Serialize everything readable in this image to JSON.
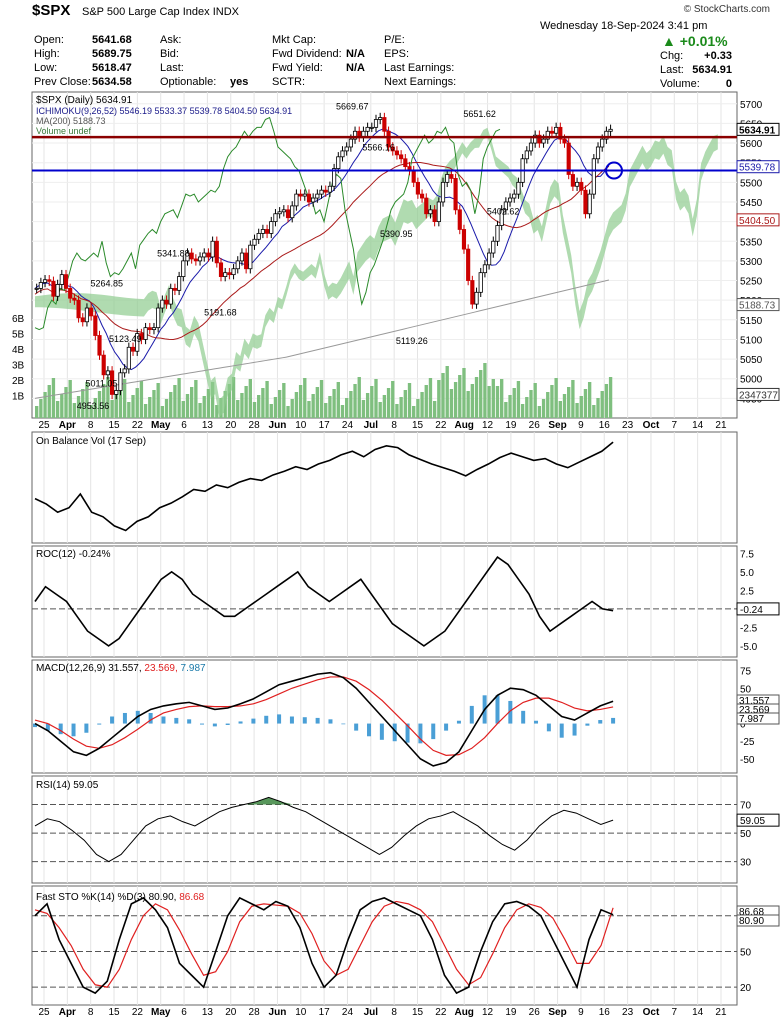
{
  "header": {
    "symbol": "$SPX",
    "name": "S&P 500 Large Cap Index",
    "exchange": "INDX",
    "brand": "© StockCharts.com",
    "datetime": "Wednesday   18-Sep-2024  3:41 pm",
    "change_pct": "+0.01%",
    "quote_rows": [
      [
        {
          "k": "Open:",
          "v": "5641.68"
        },
        {
          "k": "Ask:",
          "v": ""
        },
        {
          "k": "Mkt Cap:",
          "v": ""
        },
        {
          "k": "P/E:",
          "v": ""
        }
      ],
      [
        {
          "k": "High:",
          "v": "5689.75"
        },
        {
          "k": "Bid:",
          "v": ""
        },
        {
          "k": "Fwd Dividend:",
          "v": "N/A"
        },
        {
          "k": "EPS:",
          "v": ""
        }
      ],
      [
        {
          "k": "Low:",
          "v": "5618.47"
        },
        {
          "k": "Last:",
          "v": ""
        },
        {
          "k": "Fwd Yield:",
          "v": "N/A"
        },
        {
          "k": "Last Earnings:",
          "v": ""
        }
      ],
      [
        {
          "k": "Prev Close:",
          "v": "5634.58"
        },
        {
          "k": "Optionable:",
          "v": "yes"
        },
        {
          "k": "SCTR:",
          "v": ""
        },
        {
          "k": "Next Earnings:",
          "v": ""
        }
      ]
    ],
    "right_rows": [
      {
        "k": "Chg:",
        "v": "+0.33"
      },
      {
        "k": "Last:",
        "v": "5634.91"
      },
      {
        "k": "Volume:",
        "v": "0"
      }
    ]
  },
  "colors": {
    "up": "#ffffff",
    "down": "#cc0000",
    "cloud_up": "#8fcc8f",
    "cloud_down": "#f2b8b8",
    "res": "#8b0000",
    "sup": "#0000cc",
    "vol": "#7fbf7f",
    "obv": "#000000",
    "macd_hist": "#4a9fd6",
    "signal": "#e02020",
    "rsi_fill": "#2e7d32"
  },
  "chart_data": [
    {
      "type": "candlestick",
      "panel": "price",
      "legend": [
        "$SPX (Daily) 5634.91",
        "ICHIMOKU(9,26,52) 5546.19 5533.37 5539.78 5404.50 5634.91",
        "MA(200) 5188.73",
        "Volume undef"
      ],
      "ichimoku_values": [
        "5546.19",
        "5533.37",
        "5539.78",
        "5404.50",
        "5634.91"
      ],
      "x_ticks": [
        "25",
        "Apr",
        "8",
        "15",
        "22",
        "May",
        "6",
        "13",
        "20",
        "28",
        "Jun",
        "10",
        "17",
        "24",
        "Jul",
        "8",
        "15",
        "22",
        "Aug",
        "12",
        "19",
        "26",
        "Sep",
        "9",
        "16",
        "23",
        "Oct",
        "7",
        "14",
        "21"
      ],
      "y_ticks": [
        5700,
        5650,
        5600,
        5550,
        5500,
        5450,
        5400,
        5350,
        5300,
        5250,
        5200,
        5150,
        5100,
        5050,
        5000,
        4950
      ],
      "ylim": [
        4900,
        5730
      ],
      "volume_ticks": [
        "6B",
        "5B",
        "4B",
        "3B",
        "2B",
        "1B"
      ],
      "closes": [
        5230,
        5245,
        5252,
        5248,
        5210,
        5240,
        5265,
        5230,
        5205,
        5200,
        5155,
        5145,
        5180,
        5160,
        5110,
        5060,
        5010,
        5020,
        4960,
        4970,
        5015,
        5025,
        5080,
        5070,
        5115,
        5100,
        5130,
        5125,
        5130,
        5180,
        5200,
        5190,
        5230,
        5225,
        5260,
        5300,
        5320,
        5305,
        5300,
        5310,
        5320,
        5310,
        5350,
        5295,
        5260,
        5270,
        5265,
        5280,
        5300,
        5320,
        5280,
        5340,
        5355,
        5370,
        5380,
        5370,
        5400,
        5420,
        5425,
        5430,
        5410,
        5440,
        5470,
        5465,
        5470,
        5450,
        5460,
        5470,
        5480,
        5475,
        5490,
        5535,
        5565,
        5580,
        5590,
        5610,
        5630,
        5615,
        5630,
        5640,
        5640,
        5660,
        5665,
        5630,
        5590,
        5580,
        5570,
        5560,
        5540,
        5530,
        5500,
        5470,
        5460,
        5420,
        5430,
        5400,
        5450,
        5500,
        5520,
        5510,
        5430,
        5380,
        5330,
        5250,
        5190,
        5220,
        5270,
        5290,
        5320,
        5350,
        5390,
        5430,
        5450,
        5460,
        5470,
        5500,
        5560,
        5580,
        5600,
        5620,
        5600,
        5610,
        5630,
        5625,
        5640,
        5610,
        5600,
        5520,
        5490,
        5500,
        5480,
        5420,
        5470,
        5560,
        5590,
        5610,
        5630,
        5635
      ],
      "annotations": [
        {
          "label": "5264.85",
          "x": "Mar 28",
          "y": 5264.85
        },
        {
          "label": "4953.56",
          "x": "Apr 19",
          "y": 4953.56
        },
        {
          "label": "5011.05",
          "x": "Apr 22",
          "y": 5011.05
        },
        {
          "label": "5123.49",
          "x": "Apr 30",
          "y": 5123.49
        },
        {
          "label": "5341.88",
          "x": "May 15",
          "y": 5341.88
        },
        {
          "label": "5191.68",
          "x": "May 31",
          "y": 5191.68
        },
        {
          "label": "5669.67",
          "x": "Jul 16",
          "y": 5669.67
        },
        {
          "label": "5566.16",
          "x": "Jul 25",
          "y": 5566.16
        },
        {
          "label": "5390.95",
          "x": "Jul 31",
          "y": 5390.95
        },
        {
          "label": "5119.26",
          "x": "Aug 5",
          "y": 5119.26
        },
        {
          "label": "5651.62",
          "x": "Aug 28",
          "y": 5651.62
        },
        {
          "label": "5402.62",
          "x": "Sep 6",
          "y": 5402.62
        }
      ],
      "price_labels": [
        "5634.91",
        "5539.78",
        "5404.50",
        "5188.73",
        "2347377"
      ],
      "resistance": 5615,
      "support": 5530
    },
    {
      "type": "line",
      "panel": "obv",
      "legend": "On Balance Vol (17 Sep)",
      "values": [
        0.4,
        0.34,
        0.25,
        0.3,
        0.45,
        0.25,
        0.2,
        0.1,
        0.05,
        0.15,
        0.2,
        0.3,
        0.35,
        0.42,
        0.5,
        0.48,
        0.55,
        0.52,
        0.58,
        0.62,
        0.6,
        0.66,
        0.7,
        0.75,
        0.72,
        0.78,
        0.82,
        0.88,
        0.92,
        0.86,
        0.94,
        0.98,
        0.96,
        0.88,
        0.83,
        0.78,
        0.74,
        0.7,
        0.65,
        0.72,
        0.78,
        0.85,
        0.9,
        0.86,
        0.82,
        0.84,
        0.78,
        0.74,
        0.8,
        0.86,
        0.92,
        1.02
      ]
    },
    {
      "type": "line",
      "panel": "roc",
      "legend": "ROC(12) -0.24%",
      "y_ticks": [
        "7.5",
        "5.0",
        "2.5",
        "0",
        "-2.5",
        "-5.0"
      ],
      "ylim": [
        -6.5,
        8.5
      ],
      "last_label": "-0.24",
      "values": [
        1,
        3,
        2,
        1,
        -1,
        -3,
        -4,
        -5,
        -4,
        -2,
        0,
        2,
        4,
        5,
        4,
        2,
        1,
        0,
        -1,
        -1,
        0,
        1,
        2,
        3,
        4,
        5,
        3,
        2,
        1,
        2,
        3,
        4,
        2,
        0,
        -2,
        -3,
        -4,
        -5,
        -4,
        -3,
        -1,
        1,
        3,
        5,
        7,
        6,
        4,
        2,
        -1,
        -3,
        -2,
        -1,
        0,
        1,
        0,
        -0.24
      ]
    },
    {
      "type": "line",
      "panel": "macd",
      "legend_parts": [
        "MACD(12,26,9) 31.557, ",
        "23.569, ",
        "7.987"
      ],
      "values_labels": [
        "31.557",
        "23.569",
        "7.987"
      ],
      "y_ticks": [
        "75",
        "50",
        "25",
        "0",
        "-25",
        "-50"
      ],
      "ylim": [
        -70,
        90
      ],
      "macd": [
        0,
        -10,
        -25,
        -40,
        -45,
        -35,
        -20,
        -5,
        10,
        20,
        25,
        28,
        30,
        25,
        20,
        22,
        28,
        35,
        45,
        55,
        60,
        65,
        70,
        72,
        65,
        50,
        30,
        10,
        -10,
        -30,
        -50,
        -60,
        -55,
        -40,
        -10,
        20,
        40,
        50,
        48,
        40,
        25,
        10,
        5,
        15,
        25,
        31.557
      ],
      "signal": [
        5,
        0,
        -10,
        -22,
        -32,
        -35,
        -30,
        -20,
        -8,
        5,
        15,
        20,
        24,
        25,
        24,
        24,
        25,
        28,
        34,
        42,
        50,
        56,
        62,
        66,
        66,
        60,
        48,
        33,
        15,
        -3,
        -22,
        -38,
        -45,
        -44,
        -35,
        -20,
        0,
        18,
        30,
        36,
        36,
        30,
        22,
        18,
        20,
        23.569
      ]
    },
    {
      "type": "line",
      "panel": "rsi",
      "legend": "RSI(14) 59.05",
      "y_ticks": [
        "70",
        "50",
        "30"
      ],
      "ylim": [
        15,
        90
      ],
      "last_label": "59.05",
      "values": [
        55,
        60,
        58,
        52,
        45,
        35,
        30,
        35,
        45,
        55,
        60,
        62,
        58,
        55,
        60,
        65,
        68,
        70,
        72,
        75,
        72,
        68,
        65,
        60,
        55,
        50,
        45,
        40,
        35,
        40,
        48,
        55,
        60,
        62,
        65,
        60,
        55,
        48,
        42,
        38,
        45,
        55,
        62,
        66,
        64,
        60,
        56,
        59.05
      ]
    },
    {
      "type": "line",
      "panel": "sto",
      "legend_parts": [
        "Fast STO %K(14) %D(3) 80.90, ",
        "86.68"
      ],
      "values_labels": [
        "86.68",
        "80.90"
      ],
      "y_ticks": [
        "80",
        "50",
        "20"
      ],
      "ylim": [
        5,
        105
      ],
      "k": [
        80,
        90,
        60,
        40,
        20,
        15,
        25,
        60,
        90,
        95,
        85,
        70,
        40,
        30,
        20,
        50,
        80,
        95,
        90,
        85,
        92,
        88,
        70,
        40,
        20,
        30,
        60,
        85,
        92,
        95,
        90,
        85,
        80,
        60,
        30,
        15,
        20,
        50,
        75,
        90,
        92,
        88,
        80,
        60,
        40,
        20,
        60,
        85,
        80.9
      ],
      "d": [
        85,
        82,
        70,
        55,
        35,
        22,
        20,
        35,
        60,
        80,
        90,
        85,
        68,
        48,
        30,
        33,
        50,
        75,
        88,
        90,
        89,
        88,
        82,
        65,
        42,
        30,
        35,
        55,
        75,
        88,
        92,
        90,
        85,
        75,
        55,
        35,
        22,
        28,
        48,
        70,
        85,
        90,
        87,
        78,
        60,
        40,
        40,
        55,
        86.68
      ]
    }
  ]
}
